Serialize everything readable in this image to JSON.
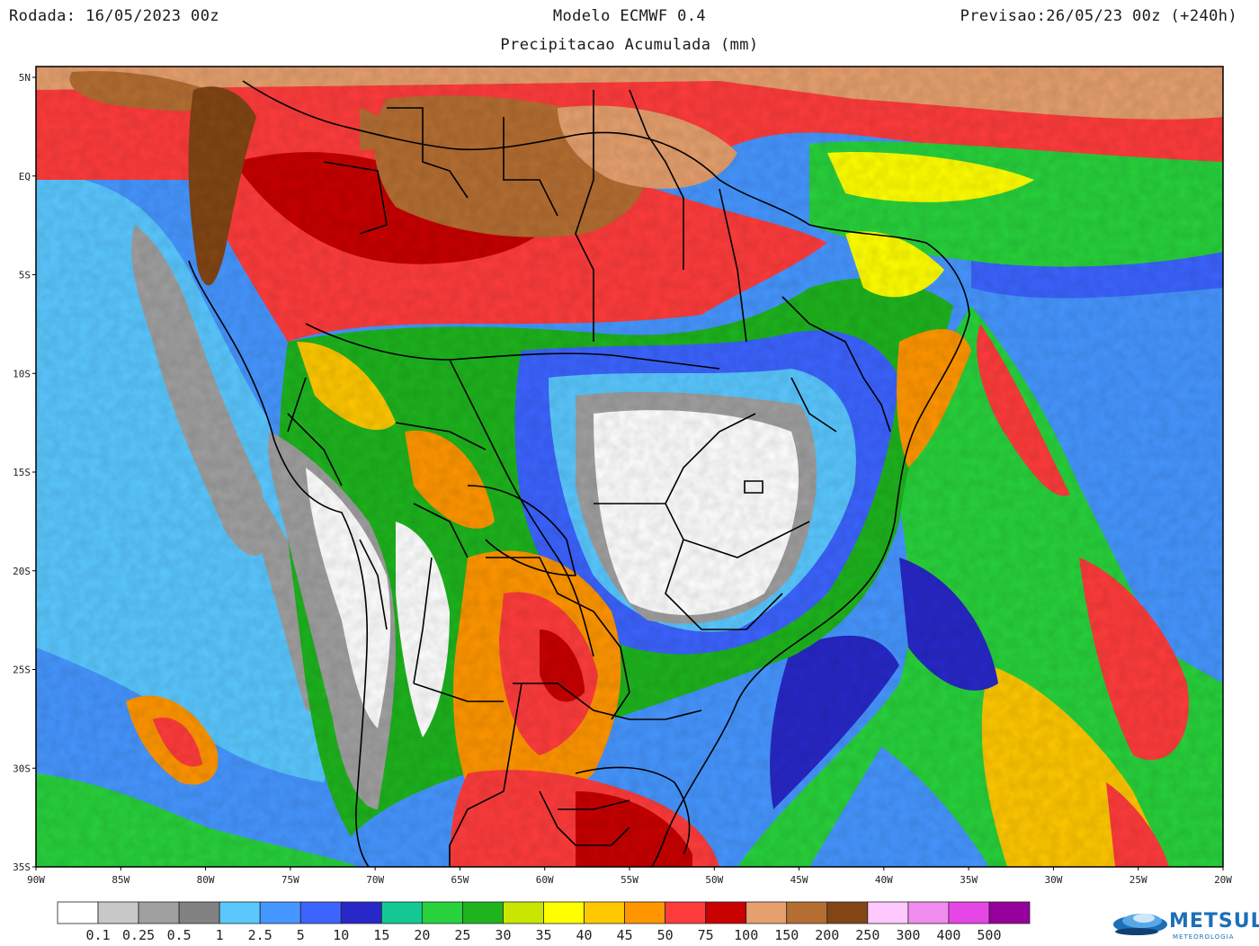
{
  "header": {
    "run": "Rodada: 16/05/2023 00z",
    "model": "Modelo ECMWF 0.4",
    "forecast": "Previsao:26/05/23 00z (+240h)",
    "subtitle": "Precipitacao Acumulada (mm)"
  },
  "map": {
    "region": "South America",
    "lon_range": [
      -90,
      -20
    ],
    "lat_range": [
      -35,
      5
    ],
    "lat_ticks": [
      "5N",
      "EQ",
      "5S",
      "10S",
      "15S",
      "20S",
      "25S",
      "30S",
      "35S"
    ],
    "lon_ticks": [
      "90W",
      "85W",
      "80W",
      "75W",
      "70W",
      "65W",
      "60W",
      "55W",
      "50W",
      "45W",
      "40W",
      "35W",
      "30W",
      "25W",
      "20W"
    ]
  },
  "colorbar": {
    "labels": [
      "0.1",
      "0.25",
      "0.5",
      "1",
      "2.5",
      "5",
      "10",
      "15",
      "20",
      "25",
      "30",
      "35",
      "40",
      "45",
      "50",
      "75",
      "100",
      "150",
      "200",
      "250",
      "300",
      "400",
      "500"
    ],
    "colors": [
      "#ffffff",
      "#c8c8c8",
      "#a0a0a0",
      "#828282",
      "#5ac8ff",
      "#4696ff",
      "#3c64ff",
      "#2828c8",
      "#14c896",
      "#28d23c",
      "#1eb41e",
      "#c8e600",
      "#ffff00",
      "#ffc800",
      "#ff9600",
      "#ff3c3c",
      "#c80000",
      "#e6a06e",
      "#b46e32",
      "#824614",
      "#ffc8ff",
      "#f08cf0",
      "#e646e6",
      "#96009b"
    ]
  },
  "logo": {
    "brand": "METSUL",
    "tagline": "METEOROLOGIA"
  }
}
